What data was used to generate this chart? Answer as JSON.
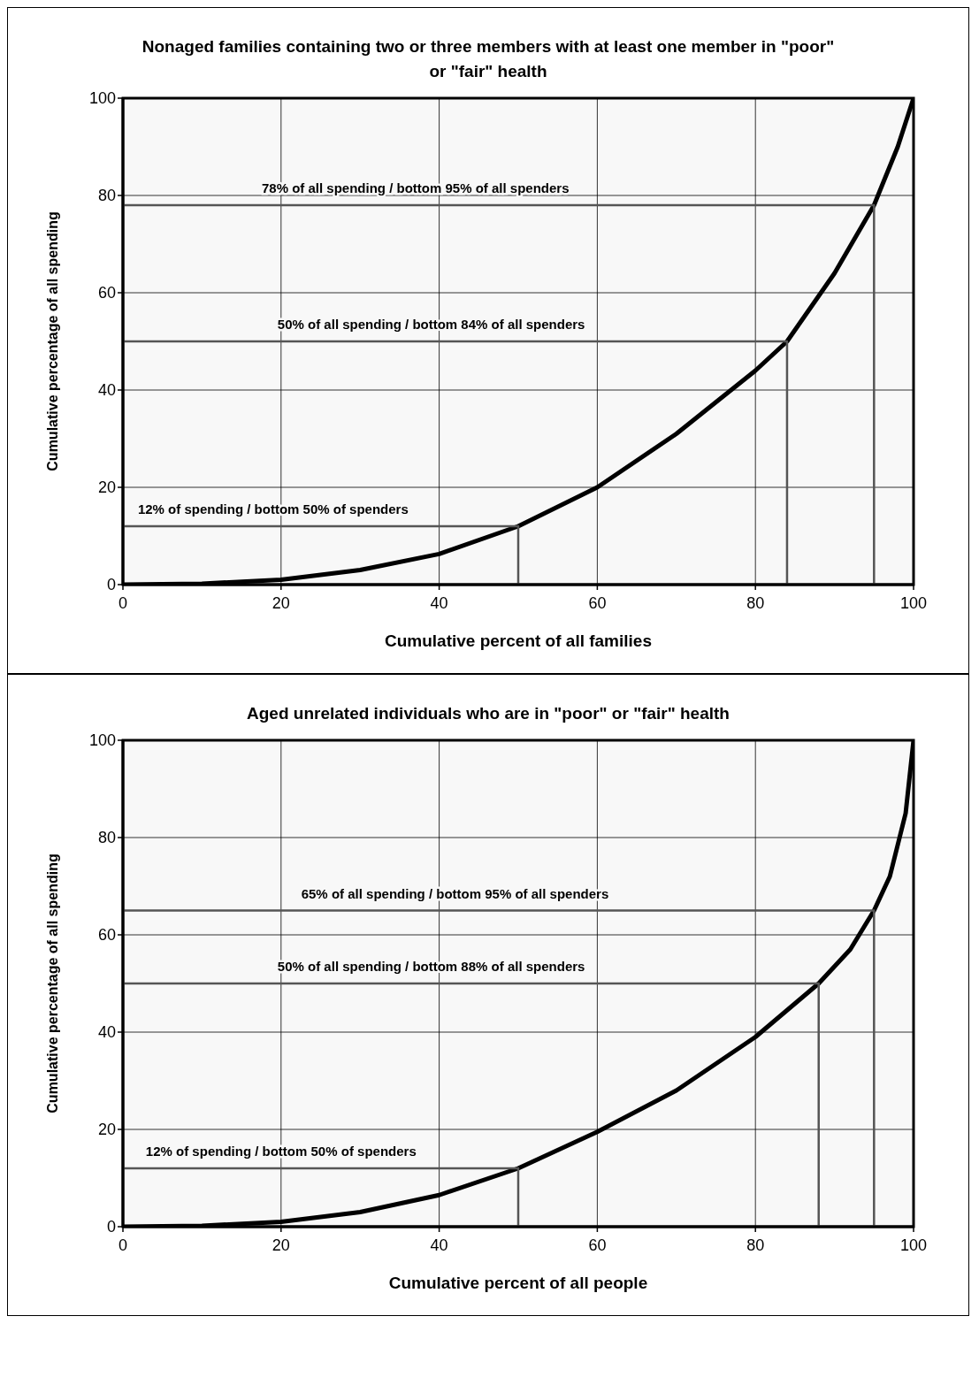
{
  "chart_data": [
    {
      "type": "line",
      "title": "Nonaged families containing two or three members with at least one member in \"poor\" or \"fair\" health",
      "xlabel": "Cumulative percent of all families",
      "ylabel": "Cumulative percentage of all spending",
      "xlim": [
        0,
        100
      ],
      "ylim": [
        0,
        100
      ],
      "xticks": [
        0,
        20,
        40,
        60,
        80,
        100
      ],
      "yticks": [
        0,
        20,
        40,
        60,
        80,
        100
      ],
      "grid": true,
      "line_style": "solid",
      "marker": "none",
      "series": [
        {
          "color": "#000000",
          "x": [
            0,
            10,
            20,
            30,
            40,
            50,
            60,
            70,
            80,
            84,
            90,
            95,
            98,
            100
          ],
          "values": [
            0,
            0.2,
            1,
            3,
            6.3,
            12,
            20,
            31,
            44,
            50,
            64,
            78,
            90,
            100
          ]
        },
        {
          "color": "#555555",
          "x": [
            0,
            95,
            95
          ],
          "values": [
            78,
            78,
            0
          ]
        },
        {
          "color": "#555555",
          "x": [
            0,
            84,
            84
          ],
          "values": [
            50,
            50,
            0
          ]
        },
        {
          "color": "#555555",
          "x": [
            0,
            50,
            50
          ],
          "values": [
            12,
            12,
            0
          ]
        }
      ],
      "annotations": [
        {
          "text": "78% of all spending / bottom 95% of all spenders",
          "x": 37,
          "y": 78
        },
        {
          "text": "50% of all spending / bottom 84% of all spenders",
          "x": 39,
          "y": 50
        },
        {
          "text": "12% of spending / bottom 50% of spenders",
          "x": 19,
          "y": 12
        }
      ]
    },
    {
      "type": "line",
      "title": "Aged unrelated individuals who are in \"poor\" or \"fair\" health",
      "xlabel": "Cumulative percent of all people",
      "ylabel": "Cumulative percentage of all spending",
      "xlim": [
        0,
        100
      ],
      "ylim": [
        0,
        100
      ],
      "xticks": [
        0,
        20,
        40,
        60,
        80,
        100
      ],
      "yticks": [
        0,
        20,
        40,
        60,
        80,
        100
      ],
      "grid": true,
      "line_style": "solid",
      "marker": "none",
      "series": [
        {
          "color": "#000000",
          "x": [
            0,
            10,
            20,
            30,
            40,
            50,
            60,
            70,
            80,
            88,
            92,
            95,
            97,
            99,
            100
          ],
          "values": [
            0,
            0.2,
            1,
            3,
            6.5,
            12,
            19.5,
            28,
            39,
            50,
            57,
            65,
            72,
            85,
            100
          ]
        },
        {
          "color": "#555555",
          "x": [
            0,
            95,
            95
          ],
          "values": [
            65,
            65,
            0
          ]
        },
        {
          "color": "#555555",
          "x": [
            0,
            88,
            88
          ],
          "values": [
            50,
            50,
            0
          ]
        },
        {
          "color": "#555555",
          "x": [
            0,
            50,
            50
          ],
          "values": [
            12,
            12,
            0
          ]
        }
      ],
      "annotations": [
        {
          "text": "65% of all spending / bottom 95% of all spenders",
          "x": 42,
          "y": 65
        },
        {
          "text": "50% of all spending / bottom 88% of all spenders",
          "x": 39,
          "y": 50
        },
        {
          "text": "12% of spending / bottom 50% of spenders",
          "x": 20,
          "y": 12
        }
      ]
    }
  ]
}
